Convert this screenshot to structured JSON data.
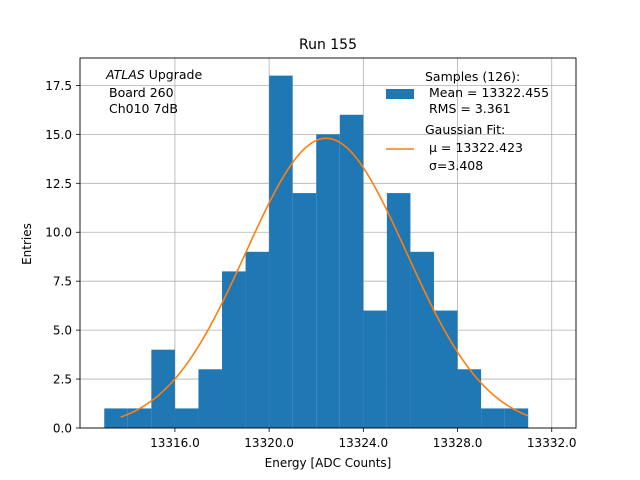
{
  "chart_data": {
    "type": "bar",
    "title": "Run 155",
    "xlabel": "Energy [ADC Counts]",
    "ylabel": "Entries",
    "xlim": [
      13311.97,
      13333.03
    ],
    "ylim": [
      0,
      18.9
    ],
    "xticks": [
      13316.0,
      13320.0,
      13324.0,
      13328.0,
      13332.0
    ],
    "xtick_labels": [
      "13316.0",
      "13320.0",
      "13324.0",
      "13328.0",
      "13332.0"
    ],
    "yticks": [
      0,
      2.5,
      5,
      7.5,
      10,
      12.5,
      15,
      17.5
    ],
    "ytick_labels": [
      "0.0",
      "2.5",
      "5.0",
      "7.5",
      "10.0",
      "12.5",
      "15.0",
      "17.5"
    ],
    "grid": true,
    "bin_edges": [
      13313,
      13314,
      13315,
      13316,
      13317,
      13318,
      13319,
      13320,
      13321,
      13322,
      13323,
      13324,
      13325,
      13326,
      13327,
      13328,
      13329,
      13330,
      13331
    ],
    "counts": [
      1,
      1,
      4,
      1,
      3,
      8,
      9,
      18,
      12,
      15,
      16,
      6,
      12,
      9,
      6,
      3,
      1,
      1
    ],
    "bar_color": "#1f77b4",
    "fit": {
      "type": "gaussian",
      "mu": 13322.423,
      "sigma": 3.408,
      "amplitude": 14.8,
      "x_range": [
        13313.7,
        13331.0
      ],
      "color": "#ff7f0e"
    },
    "annotation_lines": [
      "ATLAS Upgrade",
      "Board 260",
      "Ch010 7dB"
    ],
    "legend": {
      "position": "top-right",
      "samples_header": "Samples (126):",
      "samples_mean": "Mean = 13322.455",
      "samples_rms": "RMS = 3.361",
      "fit_header": "Gaussian Fit:",
      "fit_mu": "μ = 13322.423",
      "fit_sigma": "σ=3.408"
    }
  }
}
